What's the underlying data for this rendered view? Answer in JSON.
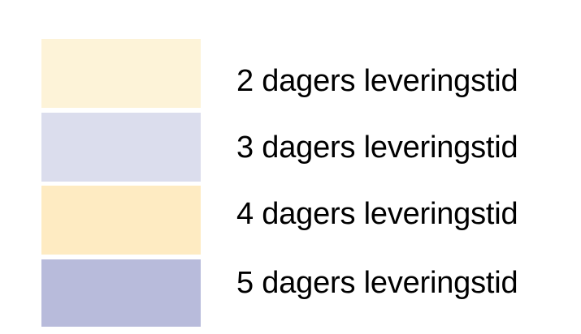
{
  "legend": {
    "background": "#FFFFFF",
    "text_color": "#000000",
    "items": [
      {
        "label": "2 dagers leveringstid",
        "color": "#FDF3D8"
      },
      {
        "label": "3 dagers leveringstid",
        "color": "#DBDDED"
      },
      {
        "label": "4 dagers leveringstid",
        "color": "#FEEBC2"
      },
      {
        "label": "5 dagers leveringstid",
        "color": "#B8BBDB"
      }
    ]
  },
  "chart_data": {
    "type": "table",
    "title": "",
    "description": "Standalone color legend mapping swatch colors to delivery-time categories (Norwegian: 'X dagers leveringstid' = 'X days delivery time')",
    "categories": [
      "2 dagers leveringstid",
      "3 dagers leveringstid",
      "4 dagers leveringstid",
      "5 dagers leveringstid"
    ],
    "colors": [
      "#FDF3D8",
      "#DBDDED",
      "#FEEBC2",
      "#B8BBDB"
    ],
    "legend_position": "standalone",
    "grid": false
  }
}
